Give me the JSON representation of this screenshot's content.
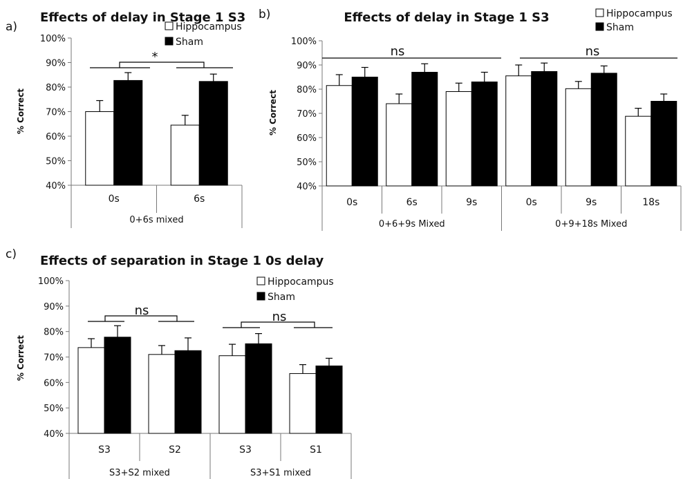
{
  "chart_data": [
    {
      "panel_label": "a)",
      "type": "bar",
      "title": "Effects of delay in Stage 1 S3",
      "ylabel": "% Correct",
      "ylim": [
        40,
        100
      ],
      "yticks": [
        "40%",
        "50%",
        "60%",
        "70%",
        "80%",
        "90%",
        "100%"
      ],
      "groups": [
        {
          "label": "0+6s mixed",
          "categories": [
            "0s",
            "6s"
          ]
        }
      ],
      "categories": [
        "0s",
        "6s"
      ],
      "series": [
        {
          "name": "Hippocampus",
          "color": "#ffffff",
          "values": [
            70,
            64.5
          ],
          "errors": [
            4.5,
            4
          ]
        },
        {
          "name": "Sham",
          "color": "#000000",
          "values": [
            82.7,
            82.3
          ],
          "errors": [
            3.2,
            3
          ]
        }
      ],
      "annotations": [
        {
          "text": "*",
          "between": [
            0,
            1
          ]
        }
      ],
      "legend_position": "top-right"
    },
    {
      "panel_label": "b)",
      "type": "bar",
      "title": "Effects of delay in Stage 1 S3",
      "ylabel": "% Correct",
      "ylim": [
        40,
        100
      ],
      "yticks": [
        "40%",
        "50%",
        "60%",
        "70%",
        "80%",
        "90%",
        "100%"
      ],
      "groups": [
        {
          "label": "0+6+9s Mixed",
          "categories": [
            "0s",
            "6s",
            "9s"
          ]
        },
        {
          "label": "0+9+18s Mixed",
          "categories": [
            "0s",
            "9s",
            "18s"
          ]
        }
      ],
      "categories": [
        "0s",
        "6s",
        "9s",
        "0s",
        "9s",
        "18s"
      ],
      "series": [
        {
          "name": "Hippocampus",
          "color": "#ffffff",
          "values": [
            81.5,
            74,
            79,
            85.5,
            80.2,
            68.8
          ],
          "errors": [
            4.5,
            4,
            3.5,
            4.5,
            3,
            3.3
          ]
        },
        {
          "name": "Sham",
          "color": "#000000",
          "values": [
            85,
            87,
            83,
            87.3,
            86.6,
            75
          ],
          "errors": [
            4,
            3.5,
            4,
            3.5,
            3,
            3
          ]
        }
      ],
      "annotations": [
        {
          "text": "ns",
          "group": 0
        },
        {
          "text": "ns",
          "group": 1
        }
      ],
      "legend_position": "top-right"
    },
    {
      "panel_label": "c)",
      "type": "bar",
      "title": "Effects of separation in Stage 1 0s delay",
      "ylabel": "% Correct",
      "ylim": [
        40,
        100
      ],
      "yticks": [
        "40%",
        "50%",
        "60%",
        "70%",
        "80%",
        "90%",
        "100%"
      ],
      "groups": [
        {
          "label": "S3+S2 mixed",
          "categories": [
            "S3",
            "S2"
          ]
        },
        {
          "label": "S3+S1 mixed",
          "categories": [
            "S3",
            "S1"
          ]
        }
      ],
      "categories": [
        "S3",
        "S2",
        "S3",
        "S1"
      ],
      "series": [
        {
          "name": "Hippocampus",
          "color": "#ffffff",
          "values": [
            73.7,
            71,
            70.5,
            63.5
          ],
          "errors": [
            3.5,
            3.5,
            4.5,
            3.5
          ]
        },
        {
          "name": "Sham",
          "color": "#000000",
          "values": [
            77.8,
            72.5,
            75.2,
            66.5
          ],
          "errors": [
            4.5,
            5,
            4,
            3
          ]
        }
      ],
      "annotations": [
        {
          "text": "ns",
          "group": 0
        },
        {
          "text": "ns",
          "group": 1
        }
      ],
      "legend_position": "top-right"
    }
  ]
}
